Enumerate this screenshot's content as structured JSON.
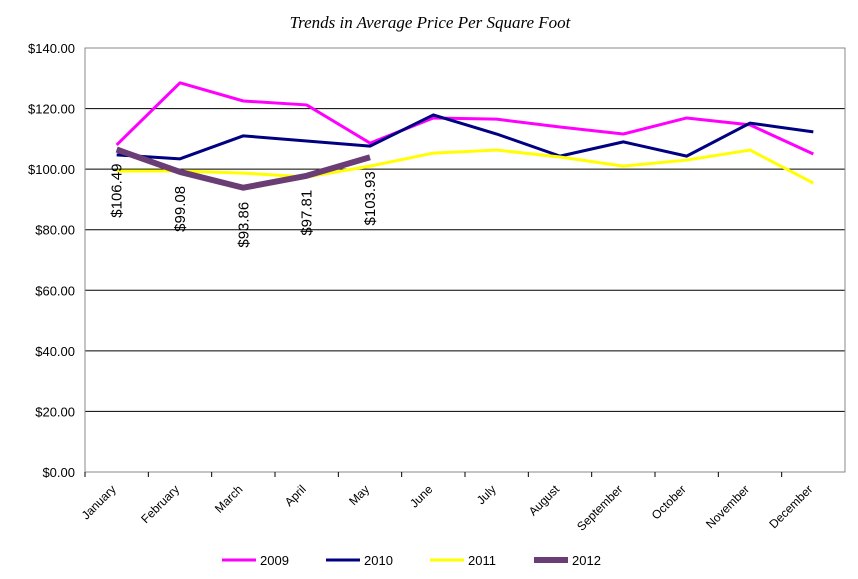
{
  "chart_data": {
    "type": "line",
    "title": "Trends in Average Price Per Square Foot",
    "categories": [
      "January",
      "February",
      "March",
      "April",
      "May",
      "June",
      "July",
      "August",
      "September",
      "October",
      "November",
      "December"
    ],
    "series": [
      {
        "name": "2009",
        "color": "#ff00ff",
        "values": [
          108,
          128.5,
          122.5,
          121.2,
          108.6,
          116.9,
          116.5,
          113.9,
          111.6,
          116.9,
          114.6,
          105
        ]
      },
      {
        "name": "2010",
        "color": "#000080",
        "values": [
          104.7,
          103.4,
          111,
          109.3,
          107.6,
          117.9,
          111.6,
          104.3,
          109,
          104.3,
          115.2,
          112.3
        ]
      },
      {
        "name": "2011",
        "color": "#ffff00",
        "values": [
          99.4,
          99.4,
          98.7,
          97.4,
          101,
          105.3,
          106.3,
          104,
          101,
          103,
          106.3,
          95.4
        ]
      },
      {
        "name": "2012",
        "color": "#6b3d75",
        "values": [
          106.49,
          99.08,
          93.86,
          97.81,
          103.93,
          null,
          null,
          null,
          null,
          null,
          null,
          null
        ],
        "value_labels": [
          "$106.49",
          "$99.08",
          "$93.86",
          "$97.81",
          "$103.93",
          null,
          null,
          null,
          null,
          null,
          null,
          null
        ]
      }
    ],
    "ylim": [
      0,
      140
    ],
    "yticks": [
      {
        "value": 0,
        "label": "$0.00"
      },
      {
        "value": 20,
        "label": "$20.00"
      },
      {
        "value": 40,
        "label": "$40.00"
      },
      {
        "value": 60,
        "label": "$60.00"
      },
      {
        "value": 80,
        "label": "$80.00"
      },
      {
        "value": 100,
        "label": "$100.00"
      },
      {
        "value": 120,
        "label": "$120.00"
      },
      {
        "value": 140,
        "label": "$140.00"
      }
    ],
    "grid": true,
    "legend": "bottom"
  }
}
